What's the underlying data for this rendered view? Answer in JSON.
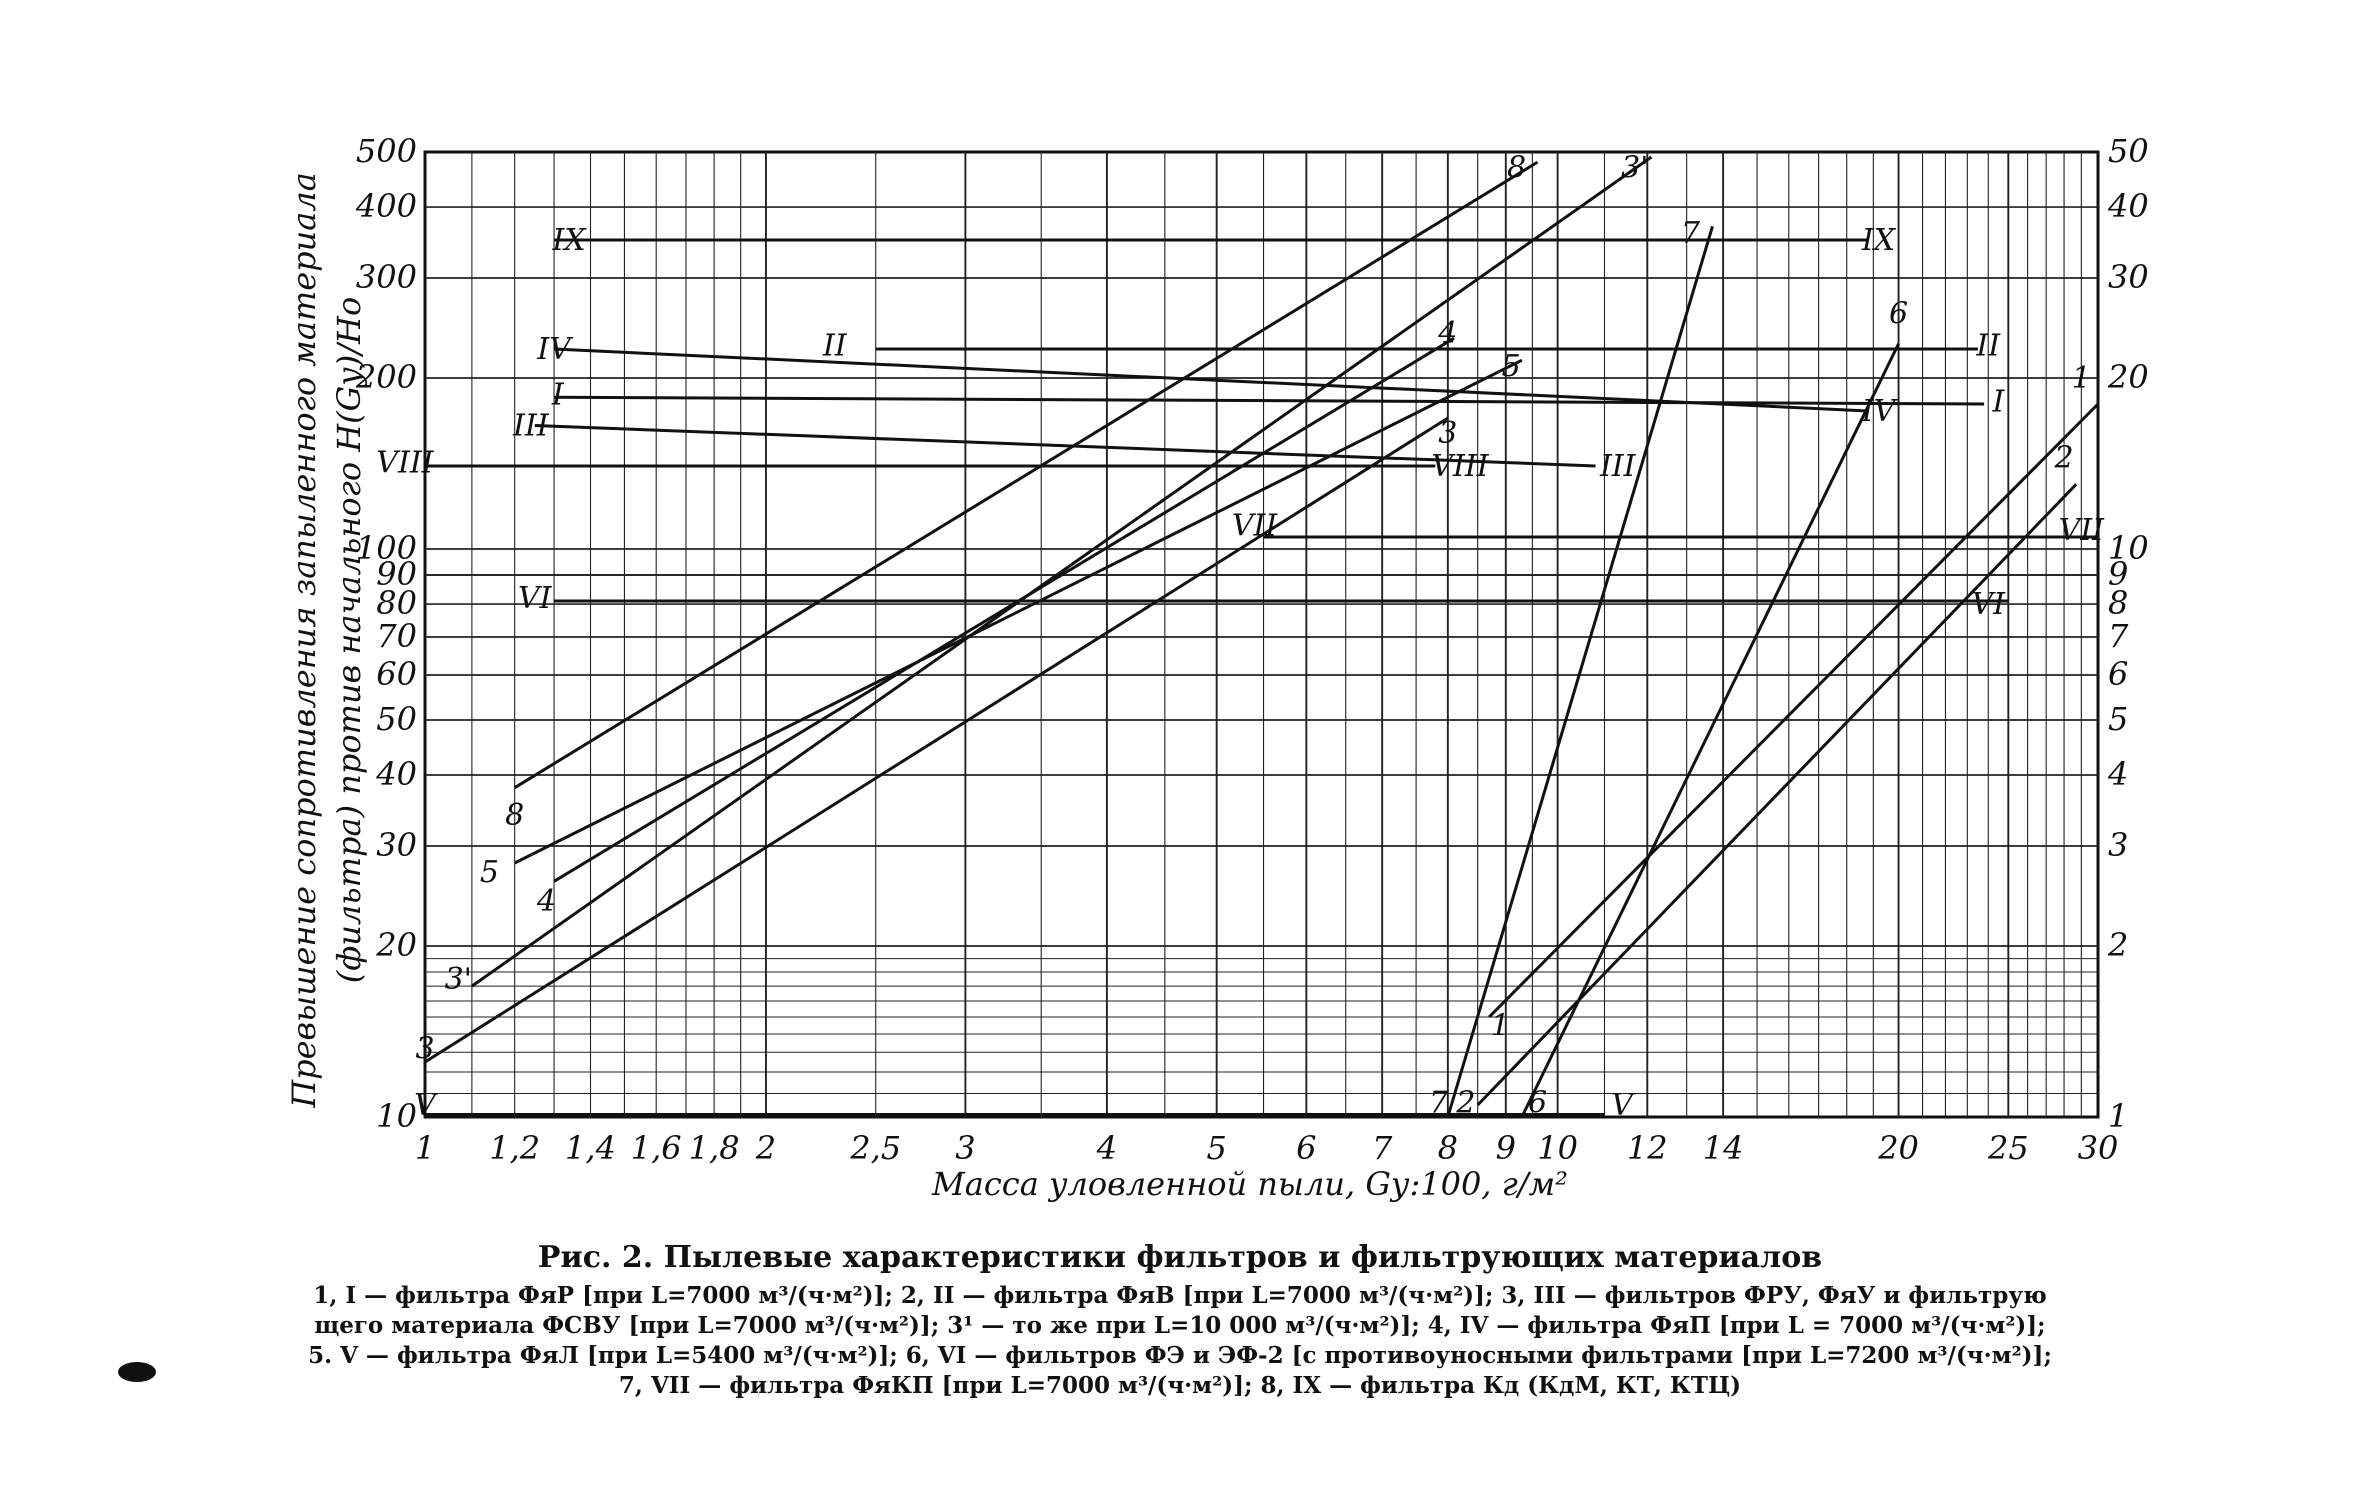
{
  "chart_data": {
    "type": "line",
    "xscale": "log",
    "yscale": "log",
    "xlabel": "Масса уловленной пыли, Gу:100, г/м²",
    "ylabel_line1": "Превышение сопротивления запыленного материала",
    "ylabel_line2": "(фильтра) против начального H(Gу)/Hо",
    "xlim": [
      1,
      30
    ],
    "ylim_left": [
      10,
      500
    ],
    "ylim_right": [
      1,
      50
    ],
    "x_ticks": [
      {
        "v": 1,
        "t": "1"
      },
      {
        "v": 1.2,
        "t": "1,2"
      },
      {
        "v": 1.4,
        "t": "1,4"
      },
      {
        "v": 1.6,
        "t": "1,6"
      },
      {
        "v": 1.8,
        "t": "1,8"
      },
      {
        "v": 2,
        "t": "2"
      },
      {
        "v": 2.5,
        "t": "2,5"
      },
      {
        "v": 3,
        "t": "3"
      },
      {
        "v": 4,
        "t": "4"
      },
      {
        "v": 5,
        "t": "5"
      },
      {
        "v": 6,
        "t": "6"
      },
      {
        "v": 7,
        "t": "7"
      },
      {
        "v": 8,
        "t": "8"
      },
      {
        "v": 9,
        "t": "9"
      },
      {
        "v": 10,
        "t": "10"
      },
      {
        "v": 12,
        "t": "12"
      },
      {
        "v": 14,
        "t": "14"
      },
      {
        "v": 20,
        "t": "20"
      },
      {
        "v": 25,
        "t": "25"
      },
      {
        "v": 30,
        "t": "30"
      }
    ],
    "y_ticks_left": [
      {
        "v": 10,
        "t": "10"
      },
      {
        "v": 20,
        "t": "20"
      },
      {
        "v": 30,
        "t": "30"
      },
      {
        "v": 40,
        "t": "40"
      },
      {
        "v": 50,
        "t": "50"
      },
      {
        "v": 60,
        "t": "60"
      },
      {
        "v": 70,
        "t": "70"
      },
      {
        "v": 80,
        "t": "80"
      },
      {
        "v": 90,
        "t": "90"
      },
      {
        "v": 100,
        "t": "100"
      },
      {
        "v": 200,
        "t": "200"
      },
      {
        "v": 300,
        "t": "300"
      },
      {
        "v": 400,
        "t": "400"
      },
      {
        "v": 500,
        "t": "500"
      }
    ],
    "y_ticks_right": [
      {
        "v": 1,
        "t": "1"
      },
      {
        "v": 2,
        "t": "2"
      },
      {
        "v": 3,
        "t": "3"
      },
      {
        "v": 4,
        "t": "4"
      },
      {
        "v": 5,
        "t": "5"
      },
      {
        "v": 6,
        "t": "6"
      },
      {
        "v": 7,
        "t": "7"
      },
      {
        "v": 8,
        "t": "8"
      },
      {
        "v": 9,
        "t": "9"
      },
      {
        "v": 10,
        "t": "10"
      },
      {
        "v": 20,
        "t": "20"
      },
      {
        "v": 30,
        "t": "30"
      },
      {
        "v": 40,
        "t": "40"
      },
      {
        "v": 50,
        "t": "50"
      }
    ],
    "series": [
      {
        "name": "8",
        "axis": "left",
        "x": [
          1.2,
          9.6
        ],
        "y": [
          38,
          480
        ]
      },
      {
        "name": "3'",
        "axis": "left",
        "x": [
          1.1,
          12.1
        ],
        "y": [
          17,
          490
        ]
      },
      {
        "name": "4",
        "axis": "left",
        "x": [
          1.3,
          8.1
        ],
        "y": [
          26,
          235
        ]
      },
      {
        "name": "5",
        "axis": "left",
        "x": [
          1.2,
          9.3
        ],
        "y": [
          28,
          215
        ]
      },
      {
        "name": "3",
        "axis": "left",
        "x": [
          1.0,
          8.0
        ],
        "y": [
          12.5,
          170
        ]
      },
      {
        "name": "7",
        "axis": "right",
        "x": [
          8.0,
          13.7
        ],
        "y": [
          1.0,
          37
        ]
      },
      {
        "name": "6",
        "axis": "right",
        "x": [
          9.3,
          20.0
        ],
        "y": [
          1.0,
          23
        ]
      },
      {
        "name": "1",
        "axis": "right",
        "x": [
          8.7,
          30.0
        ],
        "y": [
          1.5,
          18
        ]
      },
      {
        "name": "2",
        "axis": "right",
        "x": [
          8.5,
          28.7
        ],
        "y": [
          1.05,
          13
        ]
      },
      {
        "name": "IX",
        "axis": "left",
        "x": [
          1.3,
          18.8
        ],
        "y": [
          350,
          350
        ]
      },
      {
        "name": "II",
        "axis": "left",
        "x": [
          2.5,
          23.5
        ],
        "y": [
          225,
          225
        ]
      },
      {
        "name": "IV",
        "axis": "left",
        "x": [
          1.3,
          18.8
        ],
        "y": [
          225,
          175
        ]
      },
      {
        "name": "I",
        "axis": "left",
        "x": [
          1.3,
          23.8
        ],
        "y": [
          185,
          180
        ]
      },
      {
        "name": "III",
        "axis": "left",
        "x": [
          1.25,
          10.8
        ],
        "y": [
          165,
          140
        ]
      },
      {
        "name": "VIII",
        "axis": "left",
        "x": [
          1.0,
          7.8
        ],
        "y": [
          140,
          140
        ]
      },
      {
        "name": "VII",
        "axis": "left",
        "x": [
          5.5,
          30.0
        ],
        "y": [
          105,
          105
        ]
      },
      {
        "name": "VI",
        "axis": "left",
        "x": [
          1.3,
          25.0
        ],
        "y": [
          81,
          81
        ]
      },
      {
        "name": "V",
        "axis": "left",
        "x": [
          1.0,
          11.0
        ],
        "y": [
          10.1,
          10.1
        ]
      }
    ],
    "labels": [
      {
        "t": "8",
        "x": 9.2,
        "y": 470,
        "ax": "left"
      },
      {
        "t": "3'",
        "x": 11.7,
        "y": 470,
        "ax": "left"
      },
      {
        "t": "7",
        "x": 13.1,
        "y": 36,
        "ax": "right"
      },
      {
        "t": "6",
        "x": 20.0,
        "y": 26,
        "ax": "right"
      },
      {
        "t": "4",
        "x": 8.0,
        "y": 240,
        "ax": "left"
      },
      {
        "t": "5",
        "x": 9.1,
        "y": 210,
        "ax": "left"
      },
      {
        "t": "3",
        "x": 8.0,
        "y": 160,
        "ax": "left"
      },
      {
        "t": "1",
        "x": 29.0,
        "y": 20,
        "ax": "right"
      },
      {
        "t": "2",
        "x": 28.0,
        "y": 14.5,
        "ax": "right"
      },
      {
        "t": "IX",
        "x": 1.34,
        "y": 350,
        "ax": "left"
      },
      {
        "t": "IX",
        "x": 19.2,
        "y": 350,
        "ax": "left"
      },
      {
        "t": "IV",
        "x": 1.3,
        "y": 225,
        "ax": "left"
      },
      {
        "t": "IV",
        "x": 19.2,
        "y": 175,
        "ax": "left"
      },
      {
        "t": "II",
        "x": 2.3,
        "y": 228,
        "ax": "left"
      },
      {
        "t": "II",
        "x": 24.0,
        "y": 228,
        "ax": "left"
      },
      {
        "t": "I",
        "x": 1.31,
        "y": 187,
        "ax": "left"
      },
      {
        "t": "I",
        "x": 24.5,
        "y": 182,
        "ax": "left"
      },
      {
        "t": "III",
        "x": 1.24,
        "y": 165,
        "ax": "left"
      },
      {
        "t": "III",
        "x": 11.3,
        "y": 140,
        "ax": "left"
      },
      {
        "t": "VIII",
        "x": 0.96,
        "y": 142,
        "ax": "left"
      },
      {
        "t": "VIII",
        "x": 8.2,
        "y": 140,
        "ax": "left"
      },
      {
        "t": "VII",
        "x": 5.4,
        "y": 110,
        "ax": "left"
      },
      {
        "t": "VII",
        "x": 29.0,
        "y": 108,
        "ax": "left"
      },
      {
        "t": "VI",
        "x": 1.25,
        "y": 82,
        "ax": "left"
      },
      {
        "t": "VI",
        "x": 24.0,
        "y": 80,
        "ax": "left"
      },
      {
        "t": "V",
        "x": 1.0,
        "y": 10.5,
        "ax": "left"
      },
      {
        "t": "V",
        "x": 11.4,
        "y": 10.5,
        "ax": "left"
      },
      {
        "t": "8",
        "x": 1.2,
        "y": 34,
        "ax": "left"
      },
      {
        "t": "5",
        "x": 1.14,
        "y": 27,
        "ax": "left"
      },
      {
        "t": "4",
        "x": 1.28,
        "y": 24,
        "ax": "left"
      },
      {
        "t": "3'",
        "x": 1.07,
        "y": 17.5,
        "ax": "left"
      },
      {
        "t": "3",
        "x": 1.0,
        "y": 13.2,
        "ax": "left"
      },
      {
        "t": "1",
        "x": 8.9,
        "y": 1.45,
        "ax": "right"
      },
      {
        "t": "7",
        "x": 7.85,
        "y": 1.06,
        "ax": "right"
      },
      {
        "t": "2",
        "x": 8.3,
        "y": 1.06,
        "ax": "right"
      },
      {
        "t": "6",
        "x": 9.6,
        "y": 1.06,
        "ax": "right"
      }
    ]
  },
  "caption": {
    "title": "Рис. 2. Пылевые характеристики фильтров и фильтрующих материалов",
    "line1": "1, I — фильтра ФяР [при L=7000 м³/(ч·м²)]; 2, II — фильтра ФяВ [при L=7000 м³/(ч·м²)]; 3, III — фильтров ФРУ, ФяУ и фильтрую",
    "line2": "щего материала ФСВУ [при L=7000 м³/(ч·м²)]; 3¹ — то же при L=10 000 м³/(ч·м²)]; 4, IV — фильтра ФяП [при L = 7000 м³/(ч·м²)];",
    "line3": "5. V — фильтра ФяЛ [при L=5400 м³/(ч·м²)]; 6, VI — фильтров ФЭ и ЭФ-2 [с противоуносными фильтрами [при L=7200 м³/(ч·м²)];",
    "line4": "7, VII — фильтра ФяКП [при L=7000 м³/(ч·м²)]; 8, IX — фильтра Кд (КдМ, КТ, КТЦ)"
  }
}
